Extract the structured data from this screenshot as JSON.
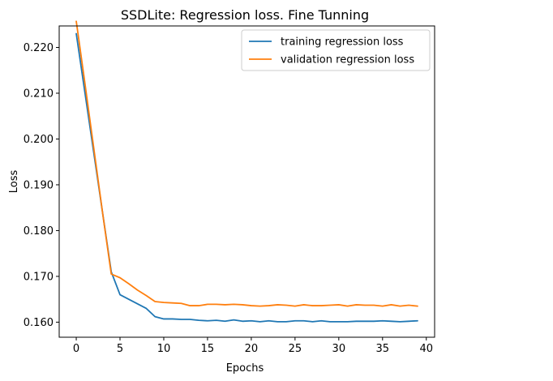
{
  "chart_data": {
    "type": "line",
    "title": "SSDLite: Regression loss. Fine Tunning",
    "xlabel": "Epochs",
    "ylabel": "Loss",
    "xlim": [
      -1.95,
      40.95
    ],
    "ylim": [
      0.15671,
      0.22469
    ],
    "xticks": [
      0,
      5,
      10,
      15,
      20,
      25,
      30,
      35,
      40
    ],
    "xtick_labels": [
      "0",
      "5",
      "10",
      "15",
      "20",
      "25",
      "30",
      "35",
      "40"
    ],
    "yticks": [
      0.16,
      0.17,
      0.18,
      0.19,
      0.2,
      0.21,
      0.22
    ],
    "ytick_labels": [
      "0.160",
      "0.170",
      "0.180",
      "0.190",
      "0.200",
      "0.210",
      "0.220"
    ],
    "grid": false,
    "legend_position": "top-right",
    "series": [
      {
        "name": "training regression loss",
        "color": "#1f77b4",
        "x": [
          0,
          1,
          2,
          3,
          4,
          5,
          6,
          7,
          8,
          9,
          10,
          11,
          12,
          13,
          14,
          15,
          16,
          17,
          18,
          19,
          20,
          21,
          22,
          23,
          24,
          25,
          26,
          27,
          28,
          29,
          30,
          31,
          32,
          33,
          34,
          35,
          36,
          37,
          38,
          39
        ],
        "y": [
          0.223,
          0.21,
          0.197,
          0.184,
          0.171,
          0.166,
          0.165,
          0.164,
          0.163,
          0.1612,
          0.1607,
          0.1607,
          0.1606,
          0.1606,
          0.1604,
          0.1603,
          0.1604,
          0.1602,
          0.1605,
          0.1602,
          0.1603,
          0.1601,
          0.1603,
          0.1601,
          0.1601,
          0.1603,
          0.1603,
          0.1601,
          0.1603,
          0.1601,
          0.1601,
          0.1601,
          0.1602,
          0.1602,
          0.1602,
          0.1603,
          0.1602,
          0.1601,
          0.1602,
          0.1603
        ]
      },
      {
        "name": "validation regression loss",
        "color": "#ff7f0e",
        "x": [
          0,
          1,
          2,
          3,
          4,
          5,
          6,
          7,
          8,
          9,
          10,
          11,
          12,
          13,
          14,
          15,
          16,
          17,
          18,
          19,
          20,
          21,
          22,
          23,
          24,
          25,
          26,
          27,
          28,
          29,
          30,
          31,
          32,
          33,
          34,
          35,
          36,
          37,
          38,
          39
        ],
        "y": [
          0.2257,
          0.212,
          0.198,
          0.184,
          0.1705,
          0.1697,
          0.1684,
          0.167,
          0.1658,
          0.1645,
          0.1643,
          0.1642,
          0.1641,
          0.1636,
          0.1636,
          0.1639,
          0.1639,
          0.1638,
          0.1639,
          0.1638,
          0.1636,
          0.1635,
          0.1636,
          0.1638,
          0.1637,
          0.1635,
          0.1638,
          0.1636,
          0.1636,
          0.1637,
          0.1638,
          0.1635,
          0.1638,
          0.1637,
          0.1637,
          0.1635,
          0.1638,
          0.1635,
          0.1637,
          0.1635
        ]
      }
    ]
  }
}
